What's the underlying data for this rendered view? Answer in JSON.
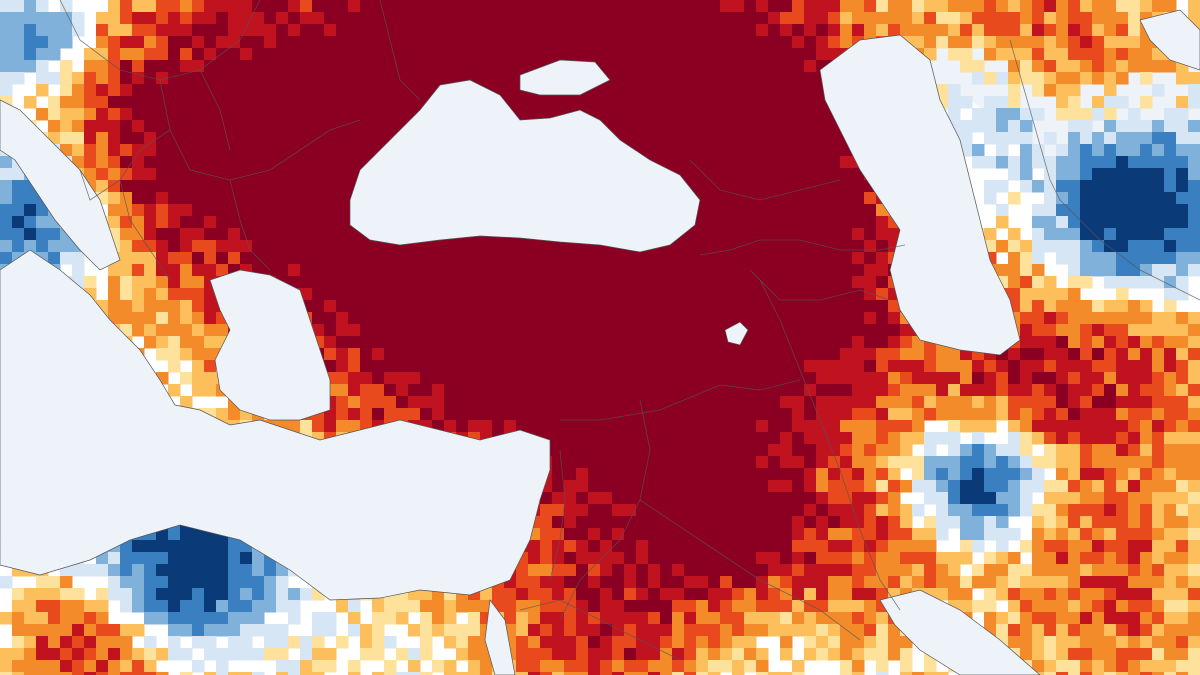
{
  "map": {
    "colors": {
      "water": "#eef3fa",
      "land_neutral": "#ffffff",
      "very_high": "#8b0022",
      "high": "#c1121f",
      "mid_high": "#e8491d",
      "mid": "#f48b2a",
      "low_high": "#fdbf5c",
      "slight_high": "#fee19a",
      "slight_low": "#d7e6f4",
      "low": "#7fb1da",
      "mid_low": "#3a7fc0",
      "very_low": "#0b3a78",
      "border": "#555555"
    },
    "layers": [
      "water-background",
      "land-base",
      "anomaly-cells",
      "country-borders",
      "coastlines"
    ]
  }
}
